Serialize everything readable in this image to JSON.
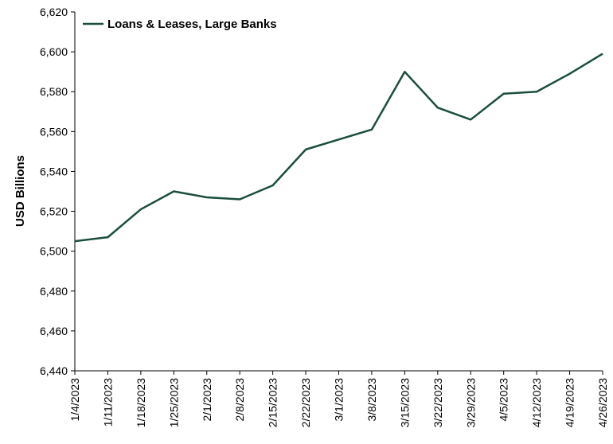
{
  "chart_data": {
    "type": "line",
    "ylabel": "USD Billions",
    "categories": [
      "1/4/2023",
      "1/11/2023",
      "1/18/2023",
      "1/25/2023",
      "2/1/2023",
      "2/8/2023",
      "2/15/2023",
      "2/22/2023",
      "3/1/2023",
      "3/8/2023",
      "3/15/2023",
      "3/22/2023",
      "3/29/2023",
      "4/5/2023",
      "4/12/2023",
      "4/19/2023",
      "4/26/2023"
    ],
    "series": [
      {
        "name": "Loans & Leases, Large Banks",
        "color": "#1a4f3a",
        "values": [
          6505,
          6507,
          6521,
          6530,
          6527,
          6526,
          6533,
          6551,
          6556,
          6561,
          6590,
          6572,
          6566,
          6579,
          6580,
          6589,
          6599
        ]
      }
    ],
    "ylim": [
      6440,
      6620
    ],
    "yticks": [
      {
        "value": 6440,
        "label": "6,440"
      },
      {
        "value": 6460,
        "label": "6,460"
      },
      {
        "value": 6480,
        "label": "6,480"
      },
      {
        "value": 6500,
        "label": "6,500"
      },
      {
        "value": 6520,
        "label": "6,520"
      },
      {
        "value": 6540,
        "label": "6,540"
      },
      {
        "value": 6560,
        "label": "6,560"
      },
      {
        "value": 6580,
        "label": "6,580"
      },
      {
        "value": 6600,
        "label": "6,600"
      },
      {
        "value": 6620,
        "label": "6,620"
      }
    ],
    "grid": false,
    "legend": "upper-left"
  }
}
